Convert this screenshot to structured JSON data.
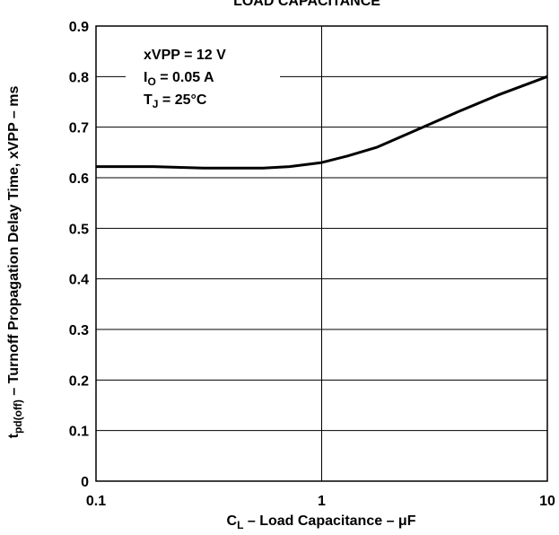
{
  "chart_data": {
    "type": "line",
    "title": "LOAD CAPACITANCE",
    "xlabel": {
      "main": "C",
      "sub": "L",
      "rest": " – Load Capacitance – μF"
    },
    "ylabel": {
      "main": "t",
      "sub": "pd(off)",
      "rest": " – Turnoff Propagation Delay Time, xVPP – ms"
    },
    "xscale": "log",
    "xlim": [
      0.1,
      10
    ],
    "ylim": [
      0,
      0.9
    ],
    "x_tick_labels": [
      "0.1",
      "1",
      "10"
    ],
    "y_tick_labels": [
      "0",
      "0.1",
      "0.2",
      "0.3",
      "0.4",
      "0.5",
      "0.6",
      "0.7",
      "0.8",
      "0.9"
    ],
    "grid": true,
    "conditions": [
      {
        "main": "xVPP = 12 V",
        "sub": "",
        "rest": ""
      },
      {
        "main": "I",
        "sub": "O",
        "rest": " = 0.05 A"
      },
      {
        "main": "T",
        "sub": "J",
        "rest": " = 25°C"
      }
    ],
    "series": [
      {
        "x": [
          0.1,
          0.18,
          0.3,
          0.55,
          0.72,
          1.0,
          1.3,
          1.75,
          2.5,
          4.0,
          6.0,
          10.0
        ],
        "y": [
          0.622,
          0.622,
          0.619,
          0.619,
          0.622,
          0.63,
          0.643,
          0.66,
          0.69,
          0.73,
          0.763,
          0.8
        ]
      }
    ]
  }
}
